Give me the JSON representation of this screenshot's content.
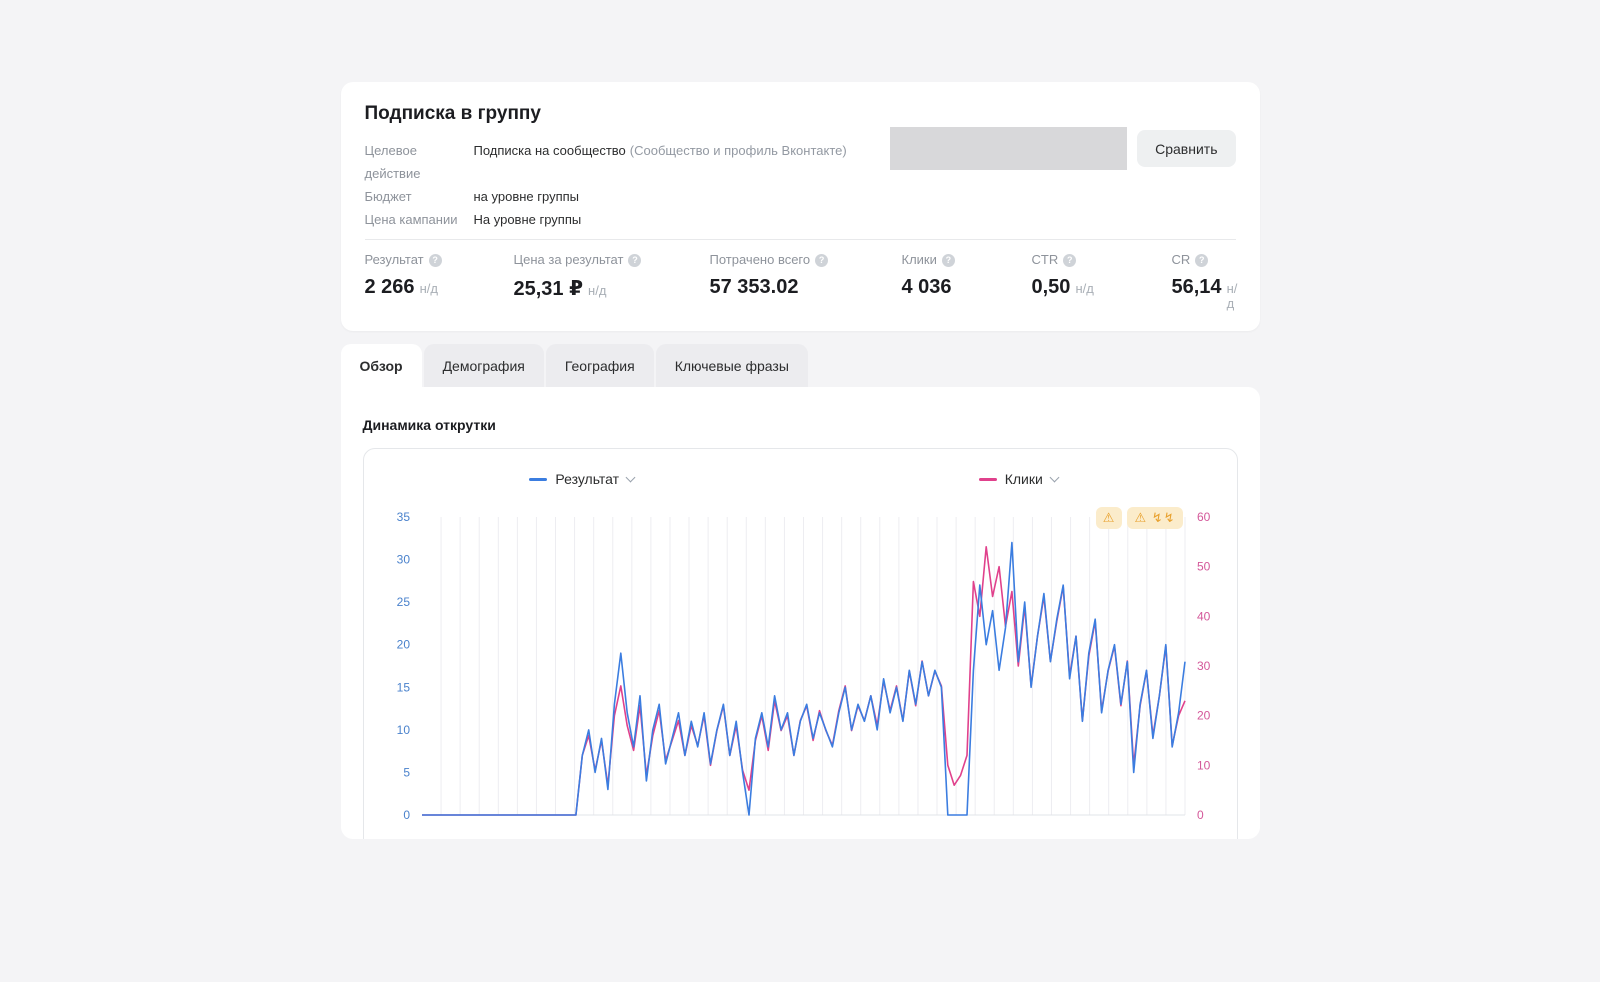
{
  "icons": {
    "help": "?"
  },
  "campaign": {
    "title": "Подписка в группу",
    "meta": {
      "rows": [
        {
          "label": "Целевое действие",
          "value": "Подписка на сообщество",
          "note": "(Сообщество и профиль Вконтакте)"
        },
        {
          "label": "Бюджет",
          "value": "на уровне группы",
          "note": ""
        },
        {
          "label": "Цена кампании",
          "value": "На уровне группы",
          "note": ""
        }
      ]
    },
    "compare_button": "Сравнить",
    "stats": [
      {
        "label": "Результат",
        "value": "2 266",
        "suffix": "н/д"
      },
      {
        "label": "Цена за результат",
        "value": "25,31 ₽",
        "suffix": "н/д"
      },
      {
        "label": "Потрачено всего",
        "value": "57 353.02",
        "suffix": ""
      },
      {
        "label": "Клики",
        "value": "4 036",
        "suffix": ""
      },
      {
        "label": "CTR",
        "value": "0,50",
        "suffix": "н/д"
      },
      {
        "label": "CR",
        "value": "56,14",
        "suffix": "н/д"
      }
    ]
  },
  "tabs": [
    {
      "label": "Обзор"
    },
    {
      "label": "Демография"
    },
    {
      "label": "География"
    },
    {
      "label": "Ключевые фразы"
    }
  ],
  "section": {
    "title": "Динамика открутки"
  },
  "badges": [
    {
      "text": "⚠"
    },
    {
      "text": "⚠ ↯↯"
    }
  ],
  "chart_data": {
    "type": "line",
    "title": "Динамика открутки",
    "legend_position": "top",
    "gridlines": {
      "vertical_count": 40,
      "horizontal": false
    },
    "left_axis": {
      "label": "Результат",
      "ticks": [
        0,
        5,
        10,
        15,
        20,
        25,
        30,
        35
      ],
      "max": 35,
      "color": "#4a82cc"
    },
    "right_axis": {
      "label": "Клики",
      "ticks": [
        0,
        10,
        20,
        30,
        40,
        50,
        60
      ],
      "max": 60,
      "color": "#d4589a"
    },
    "series": [
      {
        "name": "Результат",
        "axis": "left",
        "color": "#3b7de0",
        "values": [
          0,
          0,
          0,
          0,
          0,
          0,
          0,
          0,
          0,
          0,
          0,
          0,
          0,
          0,
          0,
          0,
          0,
          0,
          0,
          0,
          0,
          0,
          0,
          0,
          0,
          7,
          10,
          5,
          9,
          3,
          13,
          19,
          12,
          8,
          14,
          4,
          10,
          13,
          6,
          9,
          12,
          7,
          11,
          8,
          12,
          6,
          10,
          13,
          7,
          11,
          5,
          0,
          9,
          12,
          8,
          14,
          10,
          12,
          7,
          11,
          13,
          9,
          12,
          10,
          8,
          12,
          15,
          10,
          13,
          11,
          14,
          10,
          16,
          12,
          15,
          11,
          17,
          13,
          18,
          14,
          17,
          15,
          0,
          0,
          0,
          0,
          17,
          27,
          20,
          24,
          17,
          22,
          32,
          18,
          25,
          15,
          21,
          26,
          18,
          23,
          27,
          16,
          21,
          11,
          19,
          23,
          12,
          17,
          20,
          13,
          18,
          5,
          13,
          17,
          9,
          14,
          20,
          8,
          12,
          18
        ]
      },
      {
        "name": "Клики",
        "axis": "right",
        "color": "#e0418c",
        "values": [
          0,
          0,
          0,
          0,
          0,
          0,
          0,
          0,
          0,
          0,
          0,
          0,
          0,
          0,
          0,
          0,
          0,
          0,
          0,
          0,
          0,
          0,
          0,
          0,
          0,
          12,
          16,
          9,
          15,
          6,
          20,
          26,
          18,
          13,
          22,
          8,
          16,
          21,
          11,
          15,
          19,
          12,
          18,
          14,
          20,
          10,
          17,
          22,
          12,
          18,
          9,
          5,
          15,
          20,
          13,
          23,
          17,
          20,
          12,
          19,
          22,
          15,
          21,
          17,
          14,
          21,
          26,
          17,
          22,
          19,
          24,
          18,
          27,
          21,
          26,
          19,
          29,
          22,
          31,
          24,
          29,
          26,
          10,
          6,
          8,
          12,
          47,
          40,
          54,
          44,
          50,
          38,
          45,
          30,
          42,
          26,
          36,
          44,
          31,
          39,
          46,
          28,
          36,
          19,
          32,
          39,
          21,
          29,
          34,
          22,
          31,
          10,
          22,
          29,
          16,
          24,
          34,
          14,
          20,
          23
        ]
      }
    ]
  }
}
